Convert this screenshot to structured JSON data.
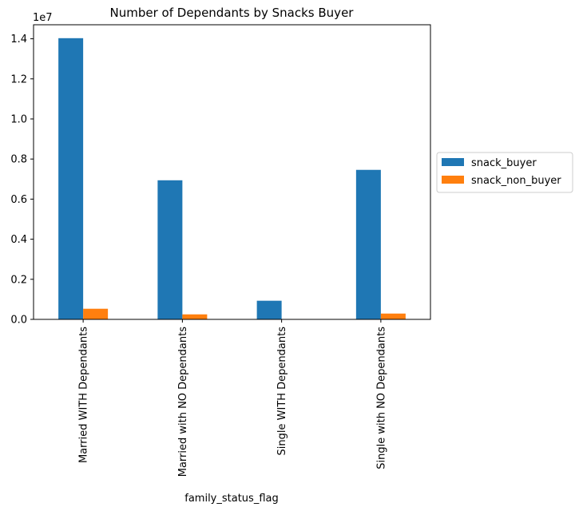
{
  "chart_data": {
    "type": "bar",
    "title": "Number of Dependants by Snacks Buyer",
    "xlabel": "family_status_flag",
    "ylabel": "",
    "y_offset_label": "1e7",
    "y_scale": 10000000,
    "ylim": [
      0,
      14700000
    ],
    "yticks": [
      0,
      2000000,
      4000000,
      6000000,
      8000000,
      10000000,
      12000000,
      14000000
    ],
    "ytick_labels": [
      "0.0",
      "0.2",
      "0.4",
      "0.6",
      "0.8",
      "1.0",
      "1.2",
      "1.4"
    ],
    "categories": [
      "Married WITH Dependants",
      "Married with NO Dependants",
      "Single WITH Dependants",
      "Single with NO Dependants"
    ],
    "series": [
      {
        "name": "snack_buyer",
        "color": "#1f77b4",
        "values": [
          14030000,
          6940000,
          930000,
          7460000
        ]
      },
      {
        "name": "snack_non_buyer",
        "color": "#ff7f0e",
        "values": [
          530000,
          250000,
          20000,
          290000
        ]
      }
    ],
    "grid": false,
    "legend_position": "outside right"
  }
}
